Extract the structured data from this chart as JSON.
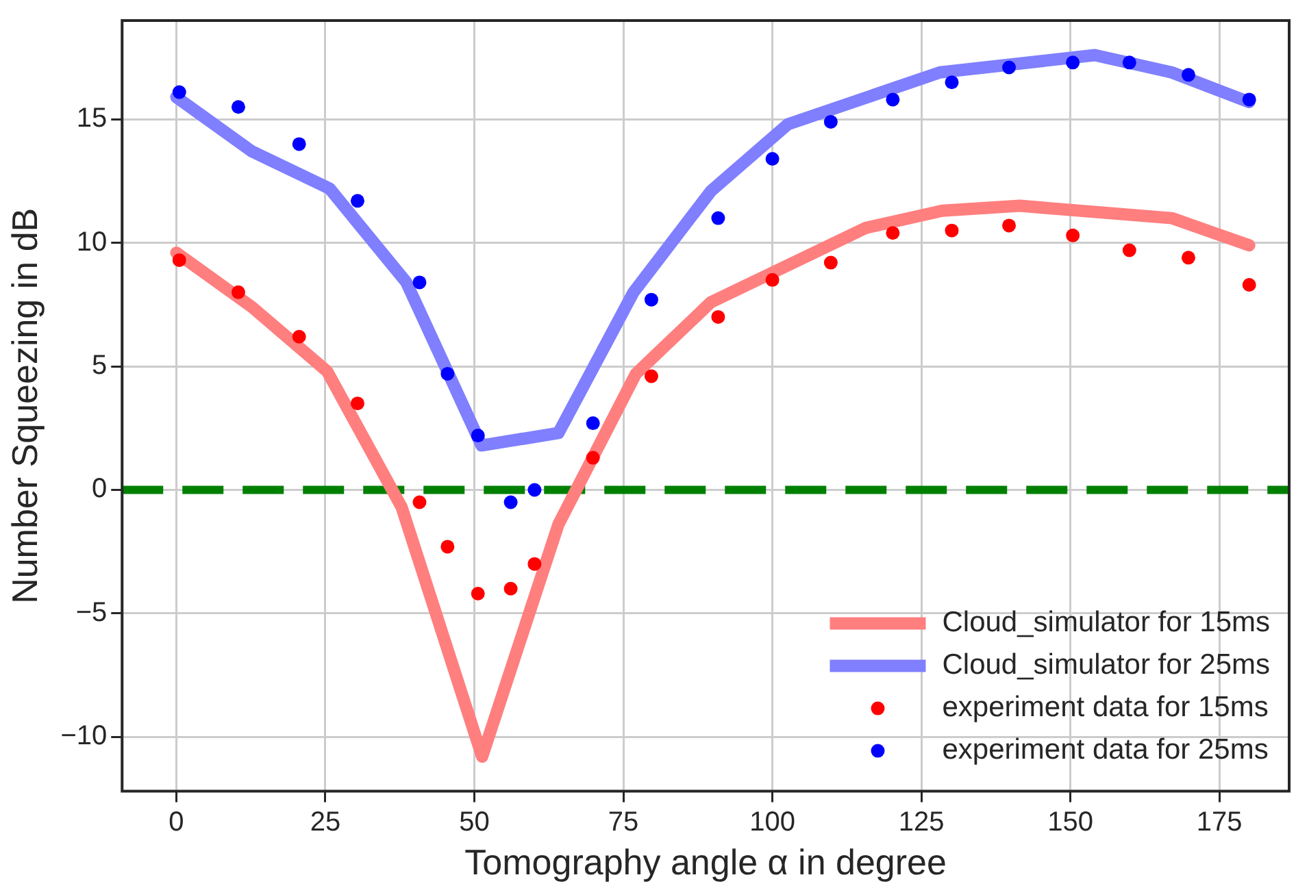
{
  "chart_data": {
    "type": "line",
    "xlabel": "Tomography angle α in degree",
    "ylabel": "Number Squeezing in dB",
    "xlim": [
      -9.1,
      186.7
    ],
    "xticks": [
      0,
      25,
      50,
      75,
      100,
      125,
      150,
      175
    ],
    "ylim": [
      -12.2,
      19.0
    ],
    "yticks": [
      {
        "value": -10,
        "label": "−10"
      },
      {
        "value": -5,
        "label": "−5"
      },
      0,
      5,
      10,
      15
    ],
    "grid": true,
    "legend": "bottom right",
    "marker": "none",
    "line_style": "solid",
    "ref_lines": [
      {
        "axis": "y",
        "value": 0,
        "color": "#008000",
        "line_style": "dashed"
      }
    ],
    "series": [
      {
        "name": "Cloud_simulator for 15ms",
        "color": "#ff7f7f",
        "x": [
          0,
          12.7,
          25.3,
          37.8,
          51.3,
          64.1,
          77.1,
          89.7,
          115.6,
          128.5,
          141.5,
          167.0,
          180
        ],
        "values": [
          9.6,
          7.4,
          4.8,
          -0.7,
          -10.8,
          -1.4,
          4.7,
          7.6,
          10.6,
          11.3,
          11.5,
          11.0,
          9.9
        ]
      },
      {
        "name": "Cloud_simulator for 25ms",
        "color": "#7f7fff",
        "x": [
          0,
          12.7,
          25.7,
          38.6,
          51.2,
          64.1,
          76.7,
          89.7,
          102.6,
          128.1,
          154.1,
          167.0,
          180
        ],
        "values": [
          15.9,
          13.7,
          12.2,
          8.4,
          1.8,
          2.3,
          8.0,
          12.1,
          14.8,
          16.9,
          17.6,
          16.9,
          15.7
        ]
      },
      {
        "name": "experiment data for 15ms",
        "type": "scatter",
        "marker": "circle",
        "color": "#ff0000",
        "x": [
          0.5,
          10.4,
          20.6,
          30.4,
          40.8,
          45.5,
          50.6,
          56.1,
          60.1,
          69.9,
          79.7,
          90.9,
          100.0,
          109.8,
          120.2,
          130.1,
          139.7,
          150.4,
          159.9,
          169.8,
          180.0
        ],
        "values": [
          9.3,
          8.0,
          6.2,
          3.5,
          -0.5,
          -2.3,
          -4.2,
          -4.0,
          -3.0,
          1.3,
          4.6,
          7.0,
          8.5,
          9.2,
          10.4,
          10.5,
          10.7,
          10.3,
          9.7,
          9.4,
          8.3
        ]
      },
      {
        "name": "experiment data for 25ms",
        "type": "scatter",
        "marker": "circle",
        "color": "#0000ff",
        "x": [
          0.5,
          10.4,
          20.6,
          30.4,
          40.8,
          45.5,
          50.6,
          56.1,
          60.1,
          69.9,
          79.7,
          90.9,
          100.0,
          109.8,
          120.2,
          130.1,
          139.7,
          150.4,
          159.9,
          169.8,
          180.0
        ],
        "values": [
          16.1,
          15.5,
          14.0,
          11.7,
          8.4,
          4.7,
          2.2,
          -0.5,
          0.0,
          2.7,
          7.7,
          11.0,
          13.4,
          14.9,
          15.8,
          16.5,
          17.1,
          17.3,
          17.3,
          16.8,
          15.8
        ]
      }
    ]
  }
}
